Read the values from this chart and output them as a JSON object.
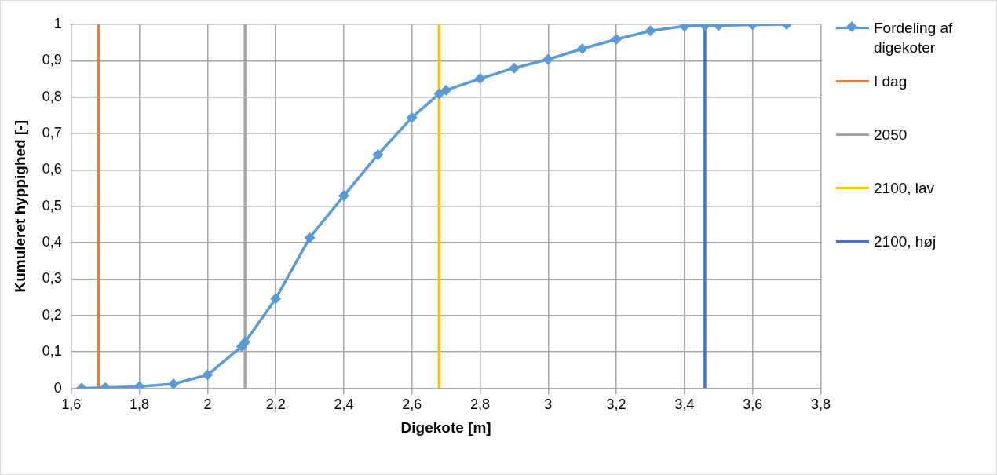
{
  "chart_data": {
    "type": "line",
    "xlabel": "Digekote [m]",
    "ylabel": "Kumuleret hyppighed [-]",
    "xlim": [
      1.6,
      3.8
    ],
    "xticks": [
      {
        "value": 1.6,
        "label": "1,6"
      },
      {
        "value": 1.8,
        "label": "1,8"
      },
      2,
      {
        "value": 2.2,
        "label": "2,2"
      },
      {
        "value": 2.4,
        "label": "2,4"
      },
      {
        "value": 2.6,
        "label": "2,6"
      },
      {
        "value": 2.8,
        "label": "2,8"
      },
      3,
      {
        "value": 3.2,
        "label": "3,2"
      },
      {
        "value": 3.4,
        "label": "3,4"
      },
      {
        "value": 3.6,
        "label": "3,6"
      },
      {
        "value": 3.8,
        "label": "3,8"
      }
    ],
    "ylim": [
      0,
      1
    ],
    "yticks": [
      0,
      {
        "value": 0.1,
        "label": "0,1"
      },
      {
        "value": 0.2,
        "label": "0,2"
      },
      {
        "value": 0.3,
        "label": "0,3"
      },
      {
        "value": 0.4,
        "label": "0,4"
      },
      {
        "value": 0.5,
        "label": "0,5"
      },
      {
        "value": 0.6,
        "label": "0,6"
      },
      {
        "value": 0.7,
        "label": "0,7"
      },
      {
        "value": 0.8,
        "label": "0,8"
      },
      {
        "value": 0.9,
        "label": "0,9"
      },
      1
    ],
    "grid": true,
    "legend": "right",
    "marker": "diamond",
    "line_style": "solid",
    "series": [
      {
        "name": "Fordeling af digekoter",
        "color": "#5b9bd5",
        "x": [
          1.63,
          1.7,
          1.8,
          1.9,
          2.0,
          2.1,
          2.11,
          2.2,
          2.3,
          2.4,
          2.5,
          2.6,
          2.68,
          2.7,
          2.8,
          2.9,
          3.0,
          3.1,
          3.2,
          3.3,
          3.4,
          3.46,
          3.5,
          3.6,
          3.7
        ],
        "values": [
          0,
          0.002,
          0.005,
          0.012,
          0.037,
          0.115,
          0.127,
          0.246,
          0.414,
          0.529,
          0.642,
          0.744,
          0.809,
          0.819,
          0.851,
          0.88,
          0.904,
          0.933,
          0.959,
          0.982,
          0.995,
          0.997,
          0.997,
          0.999,
          1.0
        ]
      },
      {
        "name": "I dag",
        "color": "#ed7d31",
        "marker": "none",
        "x": [
          1.68,
          1.68
        ],
        "values": [
          0,
          1
        ]
      },
      {
        "name": "2050",
        "color": "#a5a5a5",
        "marker": "none",
        "x": [
          2.11,
          2.11
        ],
        "values": [
          0,
          1
        ]
      },
      {
        "name": "2100, lav",
        "color": "#ffc000",
        "marker": "none",
        "x": [
          2.68,
          2.68
        ],
        "values": [
          0,
          1
        ]
      },
      {
        "name": "2100, høj",
        "color": "#4472c4",
        "marker": "none",
        "x": [
          3.46,
          3.46
        ],
        "values": [
          0,
          1
        ]
      }
    ]
  }
}
